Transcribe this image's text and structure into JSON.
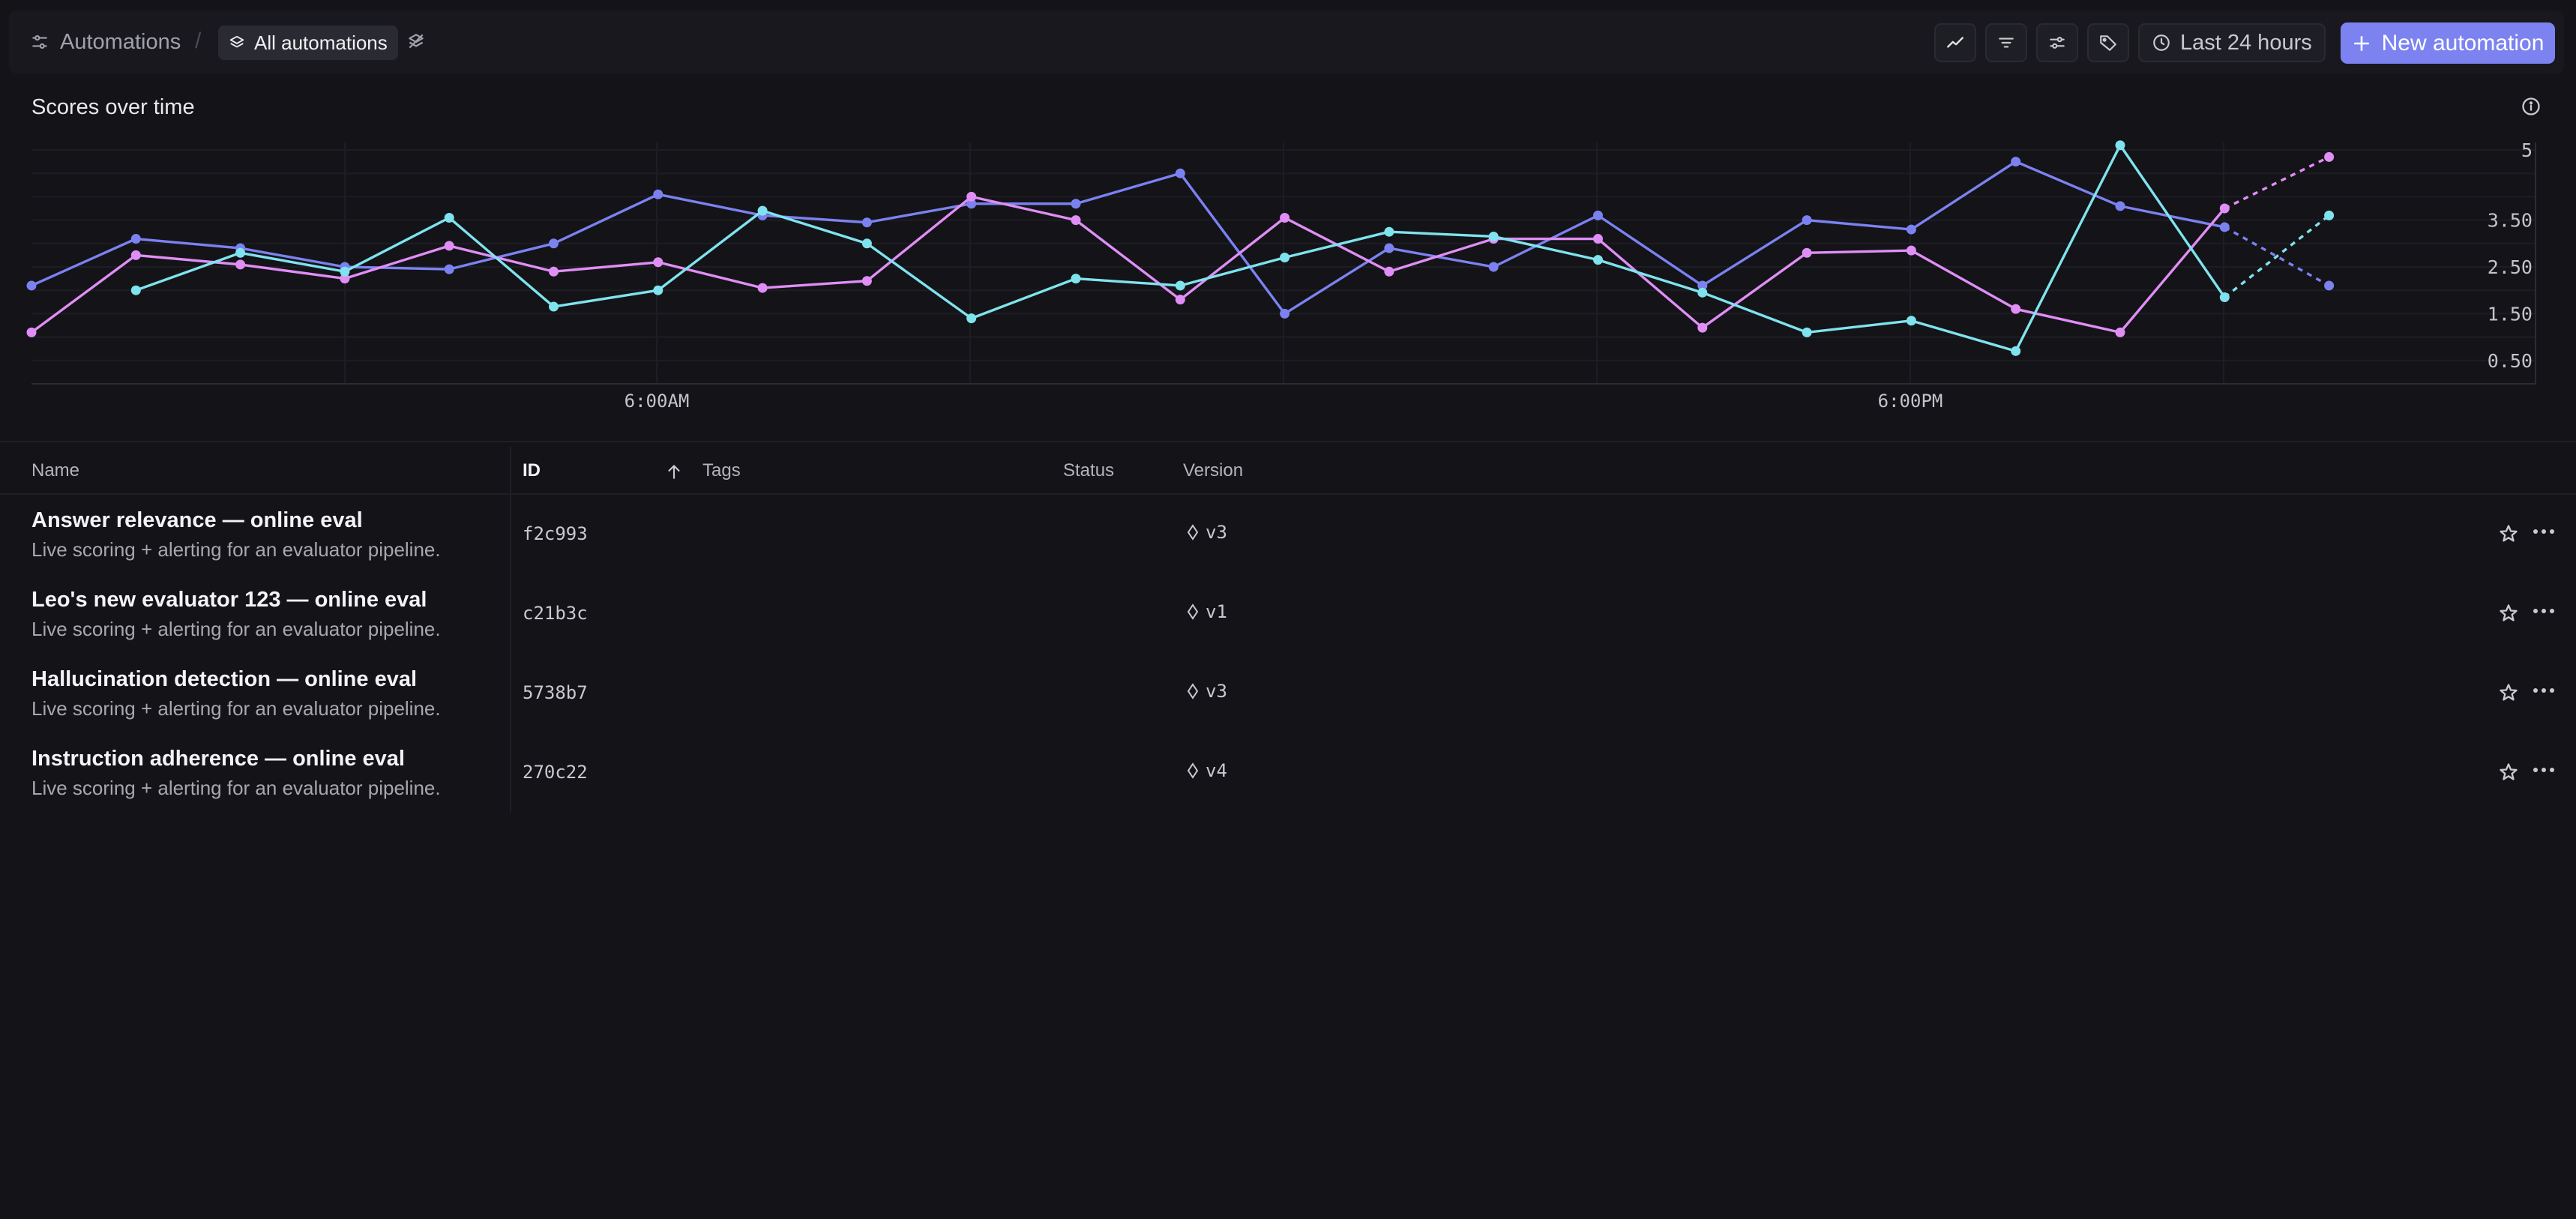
{
  "header": {
    "section": "Automations",
    "separator": "/",
    "current_view": "All automations",
    "time_range": "Last 24 hours",
    "new_button": "New automation",
    "icons": [
      "sliders-icon",
      "layers-icon",
      "layers-off-icon",
      "trend-chart-icon",
      "filter-icon",
      "settings-sliders-icon",
      "tag-icon",
      "clock-icon",
      "plus-icon"
    ]
  },
  "chart": {
    "title": "Scores over time"
  },
  "chart_data": {
    "type": "line",
    "title": "Scores over time",
    "xlabel": "",
    "ylabel": "",
    "x_tick_labels": [
      "6:00AM",
      "6:00PM"
    ],
    "y_tick_labels": [
      "5",
      "3.50",
      "2.50",
      "1.50",
      "0.50"
    ],
    "ylim": [
      0,
      5.3
    ],
    "grid": true,
    "legend": "none",
    "forecast_points": 1,
    "series": [
      {
        "color": "#7b82f0",
        "values": [
          2.1,
          3.1,
          2.9,
          2.5,
          2.45,
          3.0,
          4.05,
          3.6,
          3.45,
          3.85,
          3.85,
          4.5,
          1.5,
          2.9,
          2.5,
          3.6,
          2.1,
          3.5,
          3.3,
          4.75,
          3.8,
          3.35,
          2.1
        ]
      },
      {
        "color": "#e08ef5",
        "values": [
          1.1,
          2.75,
          2.55,
          2.25,
          2.95,
          2.4,
          2.6,
          2.05,
          2.2,
          4.0,
          3.5,
          1.8,
          3.55,
          2.4,
          3.1,
          3.1,
          1.2,
          2.8,
          2.85,
          1.6,
          1.1,
          3.75,
          4.85
        ]
      },
      {
        "color": "#7fe3ee",
        "values": [
          null,
          2.0,
          2.8,
          2.4,
          3.55,
          1.65,
          2.0,
          3.7,
          3.0,
          1.4,
          2.25,
          2.1,
          2.7,
          3.25,
          3.15,
          2.65,
          1.95,
          1.1,
          1.35,
          0.7,
          5.1,
          1.85,
          3.6
        ]
      }
    ]
  },
  "table": {
    "columns": [
      "Name",
      "ID",
      "Tags",
      "Status",
      "Version"
    ],
    "sort_column": "ID",
    "rows": [
      {
        "name": "Answer relevance — online eval",
        "description": "Live scoring + alerting for an evaluator pipeline.",
        "id": "f2c993",
        "version": "v3"
      },
      {
        "name": "Leo's new evaluator 123 — online eval",
        "description": "Live scoring + alerting for an evaluator pipeline.",
        "id": "c21b3c",
        "version": "v1"
      },
      {
        "name": "Hallucination detection — online eval",
        "description": "Live scoring + alerting for an evaluator pipeline.",
        "id": "5738b7",
        "version": "v3"
      },
      {
        "name": "Instruction adherence — online eval",
        "description": "Live scoring + alerting for an evaluator pipeline.",
        "id": "270c22",
        "version": "v4"
      }
    ]
  }
}
